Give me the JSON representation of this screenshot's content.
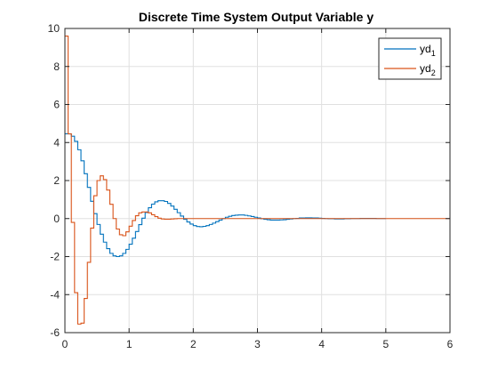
{
  "chart_data": {
    "type": "line",
    "title": "Discrete Time System Output Variable y",
    "xlabel": "",
    "ylabel": "",
    "xlim": [
      0,
      6
    ],
    "ylim": [
      -6,
      10
    ],
    "x_ticks": [
      "0",
      "1",
      "2",
      "3",
      "4",
      "5",
      "6"
    ],
    "y_ticks": [
      "-6",
      "-4",
      "-2",
      "0",
      "2",
      "4",
      "6",
      "8",
      "10"
    ],
    "grid": true,
    "legend_position": "top-right",
    "step_style": true,
    "series": [
      {
        "name_base": "yd",
        "name_sub": "1",
        "color": "#0072BD",
        "sample_time": 0.05,
        "values": [
          4.46,
          4.45,
          4.33,
          4.06,
          3.62,
          3.04,
          2.36,
          1.64,
          0.91,
          0.26,
          -0.31,
          -0.82,
          -1.24,
          -1.58,
          -1.83,
          -1.96,
          -2.0,
          -1.96,
          -1.83,
          -1.62,
          -1.35,
          -1.03,
          -0.68,
          -0.32,
          0.02,
          0.32,
          0.57,
          0.76,
          0.88,
          0.94,
          0.94,
          0.9,
          0.8,
          0.66,
          0.49,
          0.31,
          0.13,
          -0.04,
          -0.18,
          -0.29,
          -0.37,
          -0.42,
          -0.43,
          -0.41,
          -0.37,
          -0.31,
          -0.24,
          -0.16,
          -0.08,
          0.0,
          0.07,
          0.12,
          0.16,
          0.18,
          0.19,
          0.19,
          0.17,
          0.14,
          0.11,
          0.07,
          0.03,
          -0.01,
          -0.04,
          -0.06,
          -0.08,
          -0.08,
          -0.08,
          -0.07,
          -0.06,
          -0.04,
          -0.02,
          0.0,
          0.01,
          0.03,
          0.03,
          0.04,
          0.04,
          0.03,
          0.03,
          0.02,
          0.01,
          0.0,
          -0.01,
          -0.01,
          -0.02,
          -0.02,
          -0.02,
          -0.01,
          -0.01,
          0.0,
          0.0,
          0.0,
          0.01,
          0.01,
          0.01,
          0.01,
          0.01,
          0.0,
          0.0,
          0.0,
          0.0
        ]
      },
      {
        "name_base": "yd",
        "name_sub": "2",
        "color": "#D95319",
        "sample_time": 0.05,
        "x_end": 6,
        "values": [
          9.6,
          4.46,
          -0.2,
          -3.9,
          -5.55,
          -5.5,
          -4.2,
          -2.3,
          -0.5,
          1.2,
          2.0,
          2.25,
          2.05,
          1.5,
          0.75,
          0.0,
          -0.55,
          -0.85,
          -0.9,
          -0.7,
          -0.4,
          -0.1,
          0.15,
          0.3,
          0.35,
          0.35,
          0.3,
          0.2,
          0.1,
          0.02,
          -0.02,
          -0.03,
          -0.03,
          -0.02,
          -0.01,
          0.0,
          0.0,
          0.0,
          0.0,
          0.0,
          0.0,
          0.0,
          0.0,
          0.0,
          0.0,
          0.0,
          0.0,
          0.0,
          0.0,
          0.0
        ]
      }
    ]
  }
}
